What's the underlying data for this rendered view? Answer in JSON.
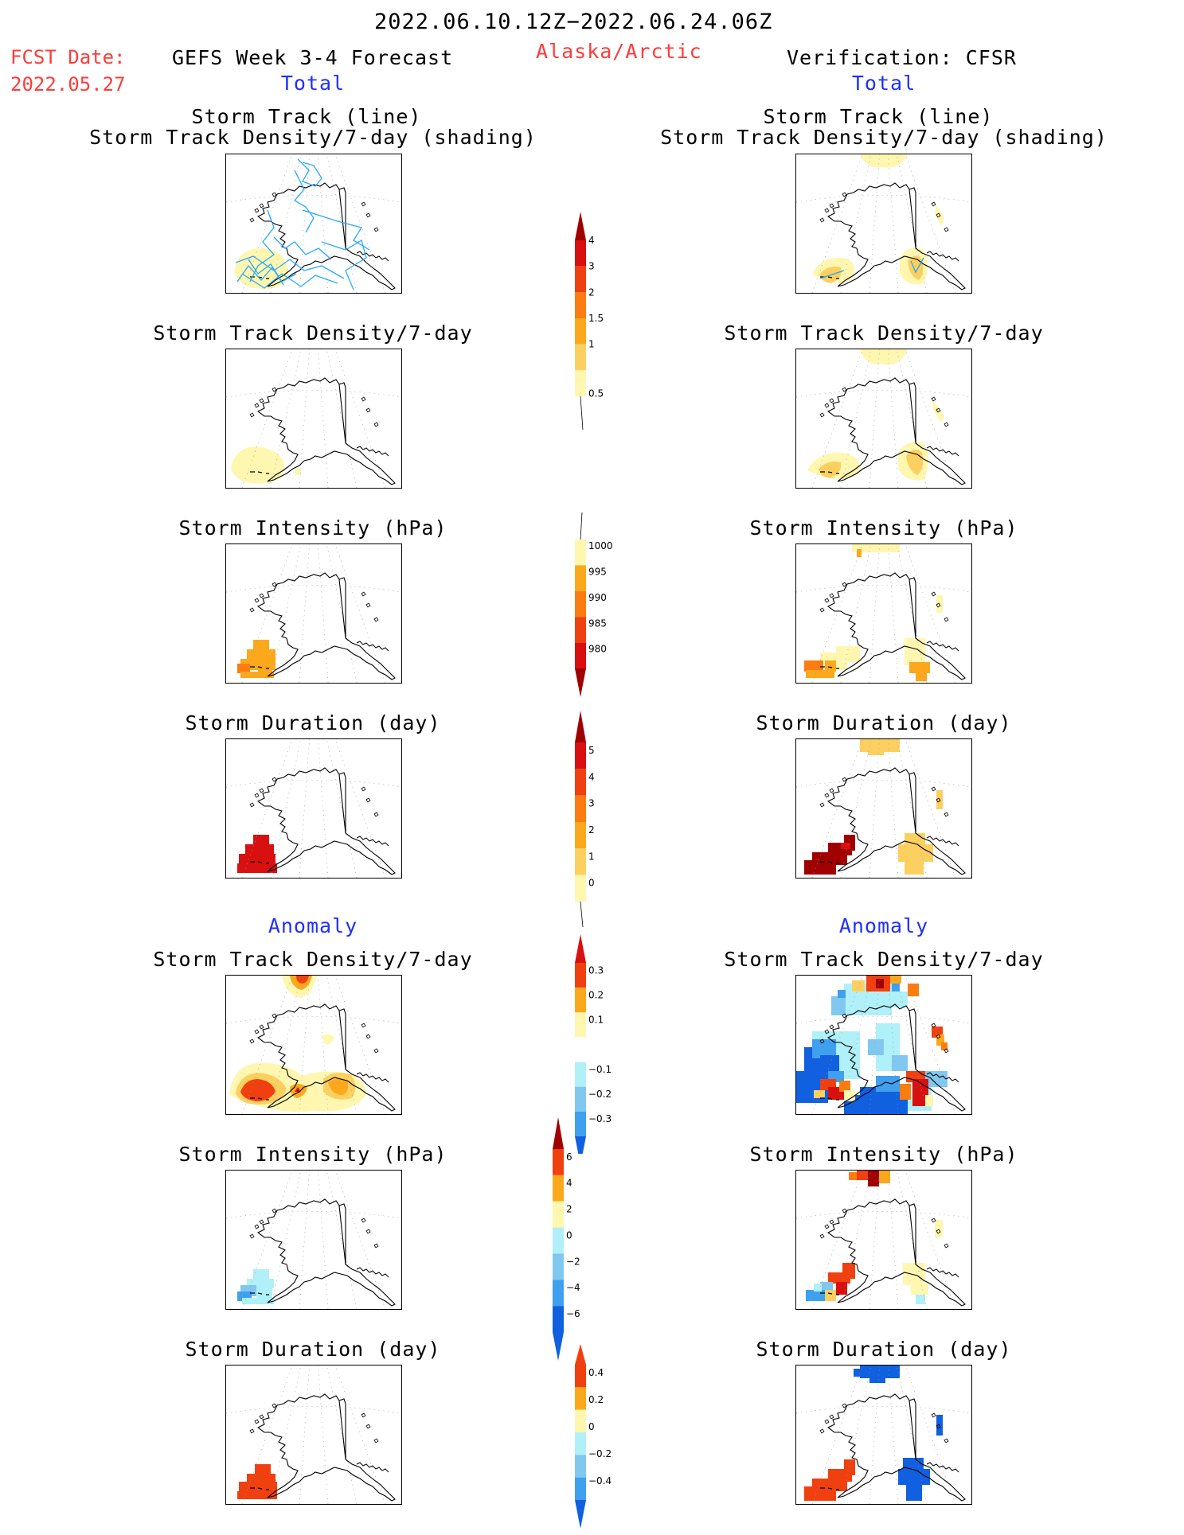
{
  "header": {
    "period": "2022.06.10.12Z−2022.06.24.06Z",
    "fcst_label": "FCST Date:",
    "fcst_date": "2022.05.27",
    "left_title": "GEFS Week 3-4 Forecast",
    "region": "Alaska/Arctic",
    "right_title": "Verification: CFSR",
    "left_total": "Total",
    "right_total": "Total",
    "left_anomaly": "Anomaly",
    "right_anomaly": "Anomaly"
  },
  "panels": {
    "track_line": "Storm Track (line)",
    "track_shading": "Storm Track Density/7-day (shading)",
    "density": "Storm Track Density/7-day",
    "intensity": "Storm Intensity (hPa)",
    "duration": "Storm Duration (day)"
  },
  "colorbars": {
    "density_total": [
      "0.5",
      "1",
      "1.5",
      "2",
      "3",
      "4"
    ],
    "intensity_total": [
      "1000",
      "995",
      "990",
      "985",
      "980"
    ],
    "duration_total": [
      "0",
      "1",
      "2",
      "3",
      "4",
      "5"
    ],
    "density_anom": [
      "0.3",
      "0.2",
      "0.1",
      "−0.1",
      "−0.2",
      "−0.3"
    ],
    "intensity_anom": [
      "6",
      "4",
      "2",
      "0",
      "−2",
      "−4",
      "−6"
    ],
    "duration_anom": [
      "0.4",
      "0.2",
      "0",
      "−0.2",
      "−0.4"
    ]
  },
  "colors": {
    "warm": [
      "#fff7b0",
      "#fcd060",
      "#fca81c",
      "#fc7c10",
      "#f04010",
      "#d81010",
      "#a00000"
    ],
    "cool": [
      "#ffffff",
      "#b0f0f8",
      "#80c8f0",
      "#40a0f0",
      "#1060e0"
    ],
    "title_red": "#ff3b3b",
    "title_blue": "#1f2fff",
    "track_line": "#28a8ff"
  }
}
